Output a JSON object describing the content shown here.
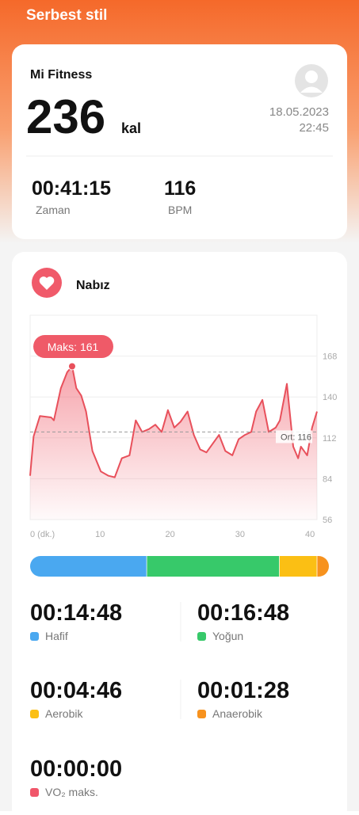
{
  "header": {
    "title": "Serbest stil"
  },
  "summary": {
    "app": "Mi Fitness",
    "calories": 236,
    "calories_unit": "kal",
    "date": "18.05.2023",
    "time": "22:45",
    "stats": [
      {
        "value": "00:41:15",
        "label": "Zaman"
      },
      {
        "value": 116,
        "label": "BPM"
      }
    ]
  },
  "heart_rate": {
    "title": "Nabız",
    "chart_data": {
      "type": "area",
      "x": [
        0,
        0.5,
        1.4,
        3.0,
        3.4,
        4.4,
        5.3,
        6.0,
        6.6,
        7.3,
        8.0,
        8.9,
        10.1,
        11.2,
        12.1,
        13.1,
        14.2,
        15.1,
        16.0,
        17.0,
        17.9,
        18.8,
        19.7,
        20.6,
        21.5,
        22.5,
        23.4,
        24.3,
        25.2,
        26.1,
        27.0,
        27.9,
        28.9,
        29.8,
        30.7,
        31.6,
        32.3,
        33.2,
        34.1,
        35.1,
        35.7,
        36.7,
        37.6,
        38.3,
        38.7,
        39.6,
        40.3,
        41.0
      ],
      "values": [
        86,
        113,
        127,
        126,
        124,
        146,
        157,
        161,
        146,
        141,
        130,
        103,
        89,
        86,
        85,
        98,
        100,
        124,
        116,
        118,
        121,
        116,
        131,
        119,
        123,
        130,
        114,
        104,
        102,
        108,
        114,
        103,
        100,
        111,
        114,
        116,
        130,
        138,
        116,
        119,
        124,
        149,
        106,
        98,
        106,
        100,
        119,
        130
      ],
      "color": "#e8505b",
      "xlim": [
        0,
        41
      ],
      "ylim": [
        56,
        196
      ],
      "xticks": [
        {
          "value": 0,
          "label": "0 (dk.)"
        },
        10,
        20,
        30,
        40
      ],
      "yticks": [
        56,
        84,
        112,
        140,
        168
      ],
      "max_label": "Maks:",
      "max": 161,
      "avg_label": "Ort:",
      "avg": 116
    }
  },
  "zones": [
    {
      "duration": "00:14:48",
      "name": "Hafif",
      "color": "#4aa8f0"
    },
    {
      "duration": "00:16:48",
      "name": "Yoğun",
      "color": "#37c96a"
    },
    {
      "duration": "00:04:46",
      "name": "Aerobik",
      "color": "#fbbf14"
    },
    {
      "duration": "00:01:28",
      "name": "Anaerobik",
      "color": "#f7921e"
    }
  ],
  "vo2": {
    "duration": "00:00:00",
    "name": "VO₂ maks.",
    "color": "#f0566a"
  }
}
